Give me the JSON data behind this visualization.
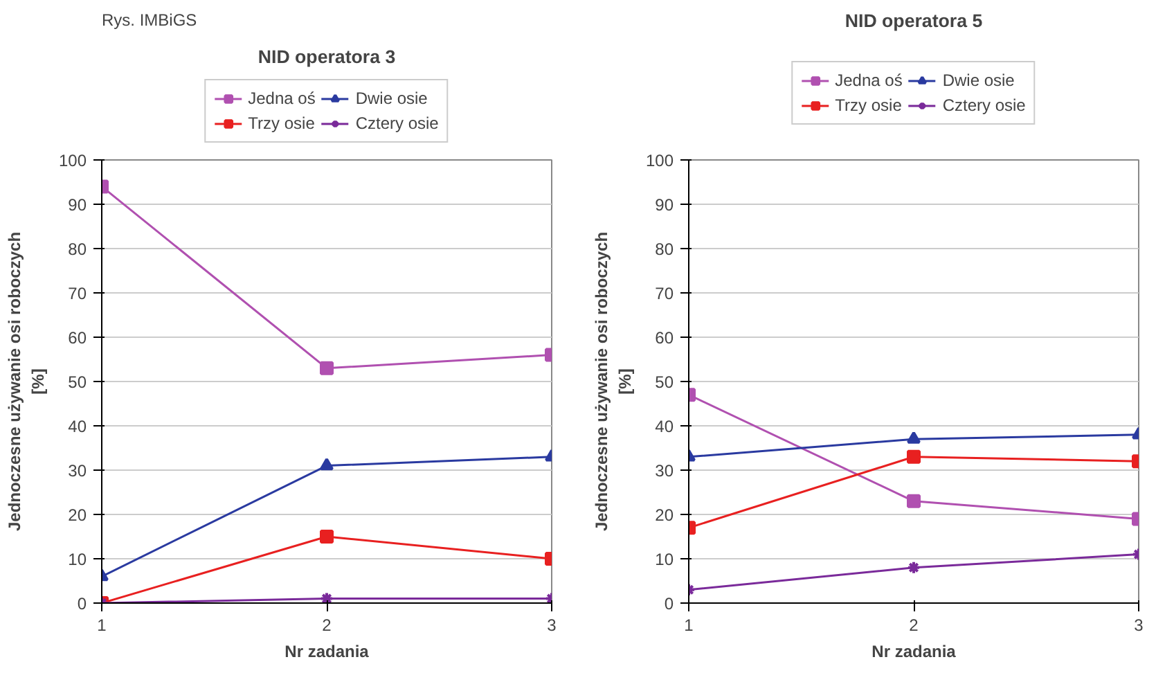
{
  "chart_data": [
    {
      "type": "line",
      "title": "NID operatora 3",
      "xlabel": "Nr zadania",
      "ylabel": "Jednoczesne używanie osi roboczych\n[%]",
      "annotations": [
        "Rys. IMBiGS"
      ],
      "x": [
        1,
        2,
        3
      ],
      "xlim": [
        1,
        3
      ],
      "xticks": [
        1,
        2,
        3
      ],
      "ylim": [
        0,
        100
      ],
      "yticks": [
        0,
        10,
        20,
        30,
        40,
        50,
        60,
        70,
        80,
        90,
        100
      ],
      "grid": "y",
      "legend": "top",
      "series": [
        {
          "name": "Jedna oś",
          "color": "#b050b0",
          "marker": "square",
          "values": [
            94,
            53,
            56
          ]
        },
        {
          "name": "Dwie osie",
          "color": "#2a3aa0",
          "marker": "triangle",
          "values": [
            6,
            31,
            33
          ]
        },
        {
          "name": "Trzy osie",
          "color": "#e82020",
          "marker": "square",
          "values": [
            0,
            15,
            10
          ]
        },
        {
          "name": "Cztery osie",
          "color": "#7a2a9a",
          "marker": "cross",
          "values": [
            0,
            1,
            1
          ]
        }
      ]
    },
    {
      "type": "line",
      "title": "NID operatora 5",
      "xlabel": "Nr zadania",
      "ylabel": "Jednoczesne używanie osi roboczych\n[%]",
      "x": [
        1,
        2,
        3
      ],
      "xlim": [
        1,
        3
      ],
      "xticks": [
        1,
        2,
        3
      ],
      "ylim": [
        0,
        100
      ],
      "yticks": [
        0,
        10,
        20,
        30,
        40,
        50,
        60,
        70,
        80,
        90,
        100
      ],
      "grid": "y",
      "legend": "top",
      "series": [
        {
          "name": "Jedna oś",
          "color": "#b050b0",
          "marker": "square",
          "values": [
            47,
            23,
            19
          ]
        },
        {
          "name": "Dwie osie",
          "color": "#2a3aa0",
          "marker": "triangle",
          "values": [
            33,
            37,
            38
          ]
        },
        {
          "name": "Trzy osie",
          "color": "#e82020",
          "marker": "square",
          "values": [
            17,
            33,
            32
          ]
        },
        {
          "name": "Cztery osie",
          "color": "#7a2a9a",
          "marker": "cross",
          "values": [
            3,
            8,
            11
          ]
        }
      ]
    }
  ]
}
